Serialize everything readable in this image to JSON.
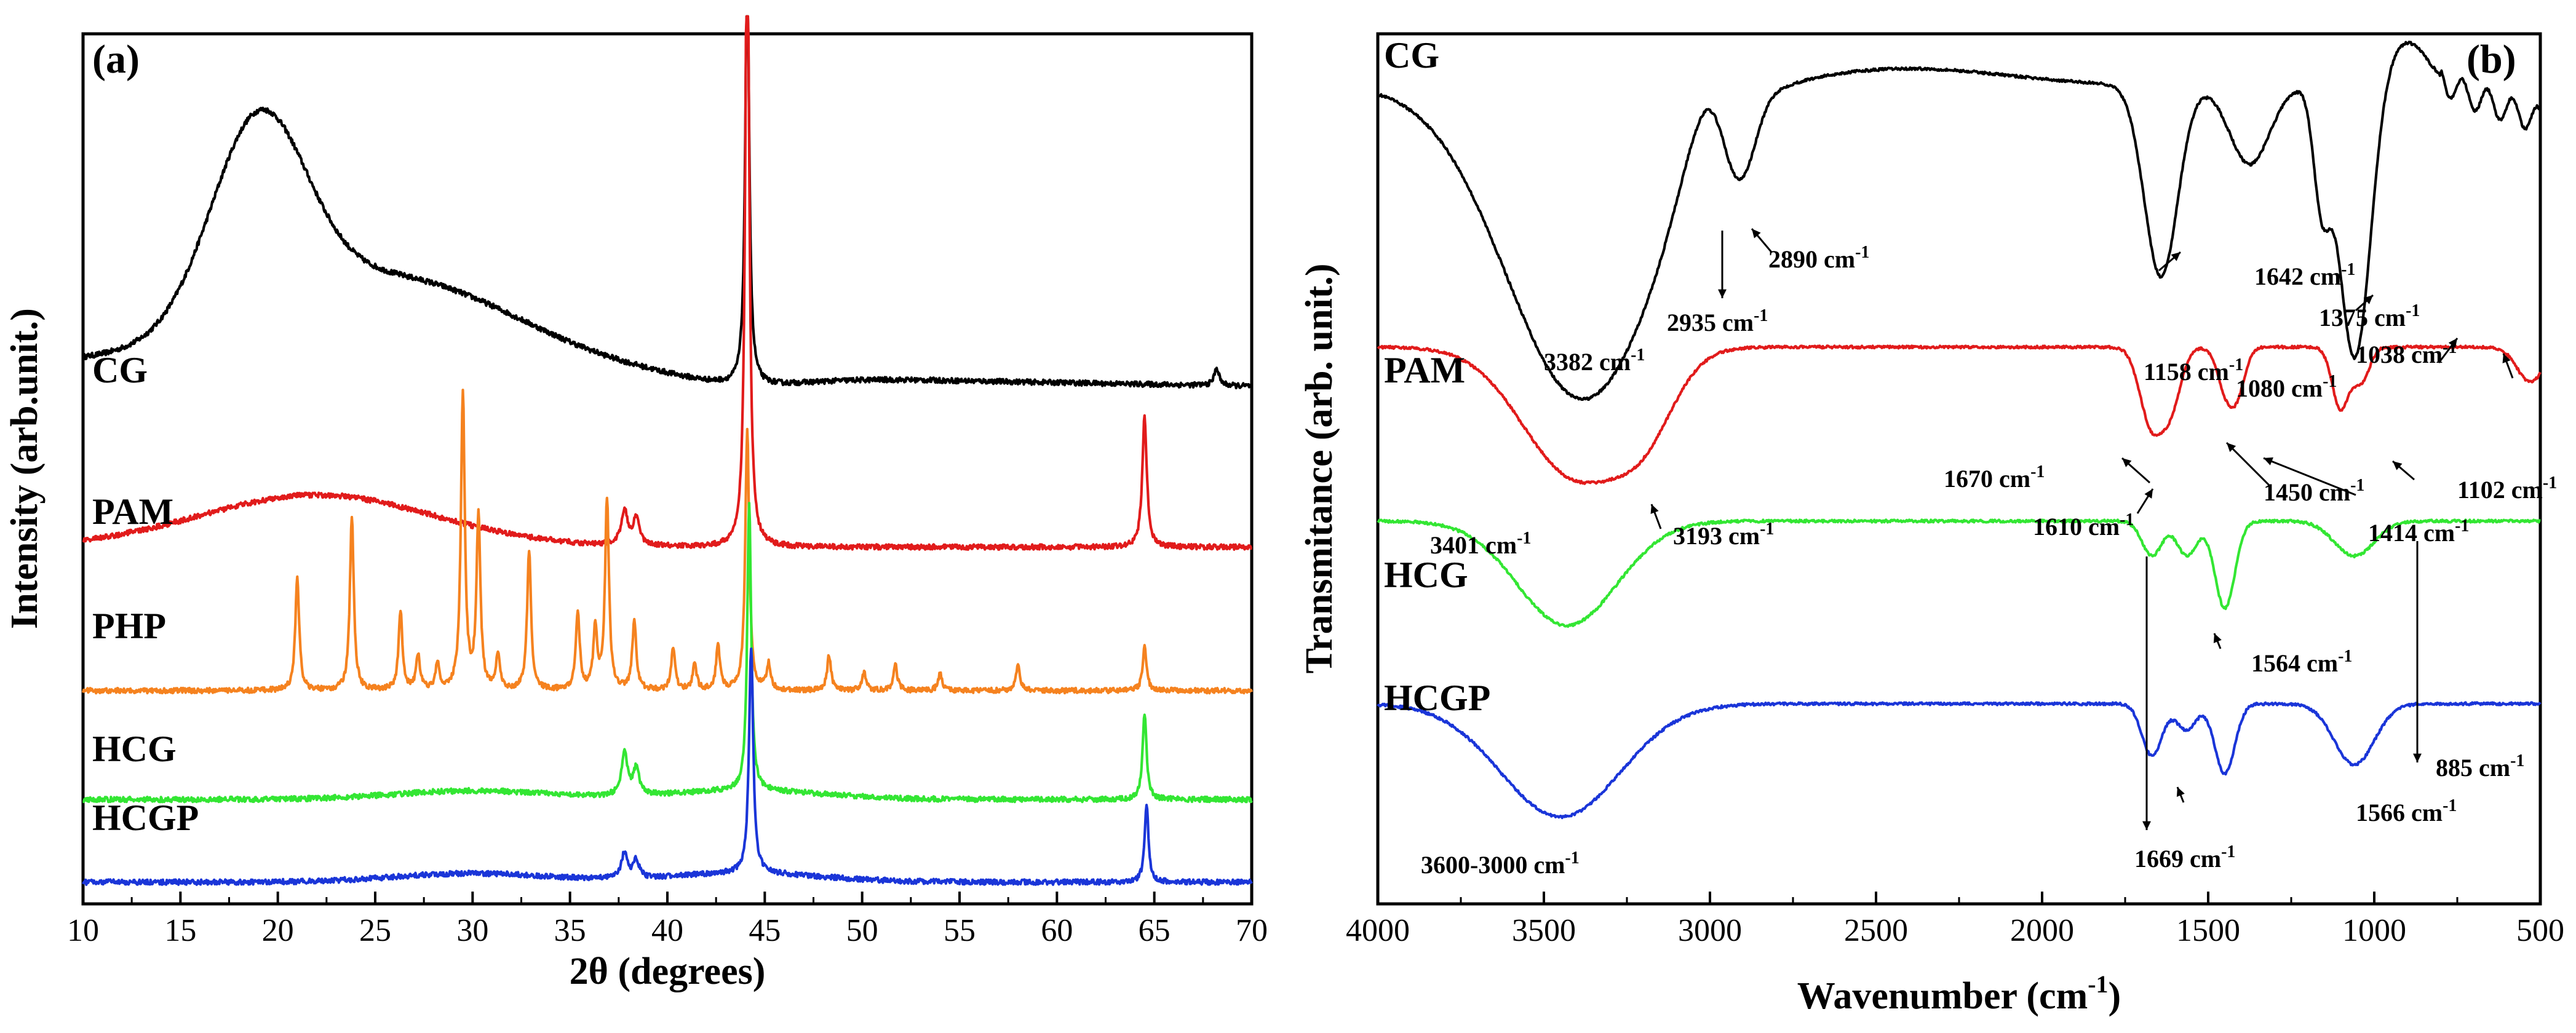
{
  "chart_data": [
    {
      "type": "line",
      "panel_label": "(a)",
      "xlabel": "2θ (degrees)",
      "ylabel": "Intensity (arb.unit.)",
      "xlim": [
        10,
        70
      ],
      "xticks": [
        10,
        15,
        20,
        25,
        30,
        35,
        40,
        45,
        50,
        55,
        60,
        65,
        70
      ],
      "grid": false,
      "series": [
        {
          "name": "CG",
          "color": "#000000",
          "offset": 0.62,
          "humps": [
            [
              19,
              0.22,
              2.4
            ],
            [
              23,
              0.09,
              6
            ],
            [
              30,
              0.04,
              5
            ],
            [
              44,
              -0.01,
              3
            ]
          ],
          "peaks": [
            [
              44.1,
              0.5,
              0.12
            ],
            [
              68.2,
              0.02,
              0.15
            ]
          ],
          "tail": -0.1
        },
        {
          "name": "PAM",
          "color": "#e11b1b",
          "offset": 0.41,
          "humps": [
            [
              22,
              0.06,
              6
            ]
          ],
          "peaks": [
            [
              44.1,
              0.77,
              0.12
            ],
            [
              64.5,
              0.15,
              0.14
            ],
            [
              37.8,
              0.04,
              0.2
            ],
            [
              38.4,
              0.03,
              0.2
            ]
          ],
          "tail": 0
        },
        {
          "name": "PHP",
          "color": "#f5821f",
          "offset": 0.245,
          "humps": [],
          "peaks": [
            [
              21.0,
              0.13,
              0.12
            ],
            [
              23.8,
              0.2,
              0.12
            ],
            [
              26.3,
              0.09,
              0.12
            ],
            [
              27.2,
              0.04,
              0.12
            ],
            [
              28.2,
              0.03,
              0.12
            ],
            [
              29.5,
              0.34,
              0.12
            ],
            [
              30.3,
              0.2,
              0.12
            ],
            [
              31.3,
              0.04,
              0.12
            ],
            [
              32.9,
              0.16,
              0.12
            ],
            [
              35.4,
              0.09,
              0.12
            ],
            [
              36.3,
              0.07,
              0.12
            ],
            [
              36.9,
              0.22,
              0.12
            ],
            [
              38.3,
              0.08,
              0.12
            ],
            [
              40.3,
              0.05,
              0.12
            ],
            [
              41.4,
              0.03,
              0.12
            ],
            [
              42.6,
              0.05,
              0.12
            ],
            [
              44.1,
              0.3,
              0.12
            ],
            [
              45.2,
              0.03,
              0.12
            ],
            [
              48.3,
              0.04,
              0.12
            ],
            [
              50.1,
              0.02,
              0.12
            ],
            [
              51.7,
              0.03,
              0.12
            ],
            [
              54.0,
              0.02,
              0.12
            ],
            [
              58.0,
              0.03,
              0.12
            ],
            [
              64.5,
              0.05,
              0.12
            ]
          ],
          "tail": 0
        },
        {
          "name": "HCG",
          "color": "#33e633",
          "offset": 0.12,
          "humps": [
            [
              30,
              0.01,
              4
            ],
            [
              44,
              0.01,
              4
            ]
          ],
          "peaks": [
            [
              44.2,
              0.33,
              0.12
            ],
            [
              64.5,
              0.1,
              0.12
            ],
            [
              37.8,
              0.05,
              0.18
            ],
            [
              38.4,
              0.03,
              0.18
            ]
          ],
          "tail": 0
        },
        {
          "name": "HCGP",
          "color": "#1a35d8",
          "offset": 0.025,
          "humps": [
            [
              30,
              0.01,
              4
            ],
            [
              44,
              0.01,
              4
            ]
          ],
          "peaks": [
            [
              44.3,
              0.26,
              0.13
            ],
            [
              64.6,
              0.09,
              0.12
            ],
            [
              37.8,
              0.03,
              0.18
            ],
            [
              38.4,
              0.02,
              0.18
            ]
          ],
          "tail": 0
        }
      ]
    },
    {
      "type": "line",
      "panel_label": "(b)",
      "xlabel": "Wavenumber (cm-1)",
      "xlabel_main": "Wavenumber (cm",
      "xlabel_sup": "-1",
      "xlabel_end": ")",
      "ylabel": "Transmitance (arb. unit.)",
      "xlim": [
        4000,
        500
      ],
      "xticks": [
        4000,
        3500,
        3000,
        2500,
        2000,
        1500,
        1000,
        500
      ],
      "grid": false,
      "series": [
        {
          "name": "CG",
          "color": "#000000",
          "base": 0.94,
          "dips": [
            [
              3382,
              0.36,
              230
            ],
            [
              2935,
              0.07,
              40
            ],
            [
              2890,
              0.06,
              40
            ],
            [
              1642,
              0.22,
              50
            ],
            [
              1375,
              0.09,
              60
            ],
            [
              1158,
              0.13,
              25
            ],
            [
              1080,
              0.18,
              40
            ],
            [
              1038,
              0.18,
              40
            ],
            [
              3000,
              -0.08,
              80
            ],
            [
              2400,
              -0.02,
              300
            ],
            [
              900,
              -0.05,
              60
            ]
          ],
          "tail": [
            [
              700,
              0.02
            ],
            [
              500,
              0.05
            ]
          ]
        },
        {
          "name": "PAM",
          "color": "#e11b1b",
          "base": 0.64,
          "dips": [
            [
              3401,
              0.15,
              160
            ],
            [
              3193,
              0.06,
              90
            ],
            [
              1670,
              0.09,
              35
            ],
            [
              1610,
              0.06,
              30
            ],
            [
              1450,
              0.04,
              25
            ],
            [
              1414,
              0.05,
              25
            ],
            [
              1102,
              0.07,
              25
            ],
            [
              1040,
              0.04,
              25
            ],
            [
              530,
              0.04,
              40
            ]
          ],
          "tail": []
        },
        {
          "name": "HCG",
          "color": "#33e633",
          "base": 0.44,
          "dips": [
            [
              3430,
              0.12,
              150
            ],
            [
              1669,
              0.04,
              30
            ],
            [
              1564,
              0.04,
              30
            ],
            [
              1450,
              0.1,
              30
            ],
            [
              1060,
              0.04,
              60
            ]
          ],
          "tail": []
        },
        {
          "name": "HCGP",
          "color": "#1a35d8",
          "base": 0.23,
          "dips": [
            [
              3450,
              0.13,
              180
            ],
            [
              1669,
              0.06,
              30
            ],
            [
              1566,
              0.03,
              30
            ],
            [
              1450,
              0.08,
              30
            ],
            [
              1060,
              0.07,
              60
            ]
          ],
          "tail": []
        }
      ],
      "annotations": [
        {
          "text": "2890 cm",
          "sup": "-1"
        },
        {
          "text": "2935 cm",
          "sup": "-1"
        },
        {
          "text": "3382 cm",
          "sup": "-1"
        },
        {
          "text": "1642 cm",
          "sup": "-1"
        },
        {
          "text": "1375 cm",
          "sup": "-1"
        },
        {
          "text": "1158 cm",
          "sup": "-1"
        },
        {
          "text": "1080 cm",
          "sup": "-1"
        },
        {
          "text": "1038 cm",
          "sup": "-1"
        },
        {
          "text": "1670 cm",
          "sup": "-1"
        },
        {
          "text": "1610 cm",
          "sup": "-1"
        },
        {
          "text": "1450 cm",
          "sup": "-1"
        },
        {
          "text": "1414 cm",
          "sup": "-1"
        },
        {
          "text": "1102 cm",
          "sup": "-1"
        },
        {
          "text": "3401 cm",
          "sup": "-1"
        },
        {
          "text": "3193 cm",
          "sup": "-1"
        },
        {
          "text": "1564 cm",
          "sup": "-1"
        },
        {
          "text": "1566 cm",
          "sup": "-1"
        },
        {
          "text": "885 cm",
          "sup": "-1"
        },
        {
          "text": "3600-3000 cm",
          "sup": "-1"
        },
        {
          "text": "1669 cm",
          "sup": "-1"
        }
      ]
    }
  ]
}
